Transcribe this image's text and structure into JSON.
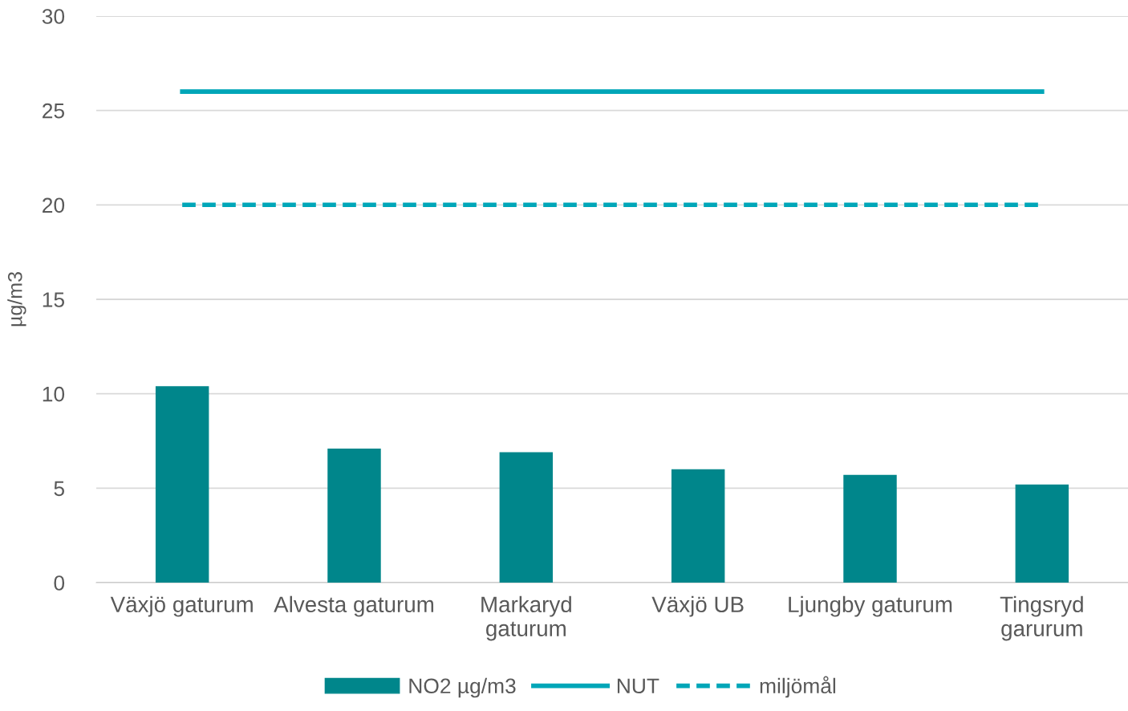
{
  "chart_data": {
    "type": "bar",
    "ylabel": "µg/m3",
    "categories": [
      "Växjö gaturum",
      "Alvesta gaturum",
      "Markaryd gaturum",
      "Växjö UB",
      "Ljungby gaturum",
      "Tingsryd garurum"
    ],
    "series": [
      {
        "name": "NO2 µg/m3",
        "color": "#00868b",
        "values": [
          10.4,
          7.1,
          6.9,
          6.0,
          5.7,
          5.2
        ]
      },
      {
        "name": "NUT",
        "type": "line",
        "color": "#00a6b8",
        "line_style": "solid",
        "values": [
          26,
          26,
          26,
          26,
          26,
          26
        ]
      },
      {
        "name": "miljömål",
        "type": "line",
        "color": "#00a6b8",
        "line_style": "dashed",
        "values": [
          20,
          20,
          20,
          20,
          20,
          20
        ]
      }
    ],
    "ylim": [
      0,
      30
    ],
    "yticks": [
      0,
      5,
      10,
      15,
      20,
      25,
      30
    ],
    "grid": "y",
    "legend": "bottom"
  }
}
